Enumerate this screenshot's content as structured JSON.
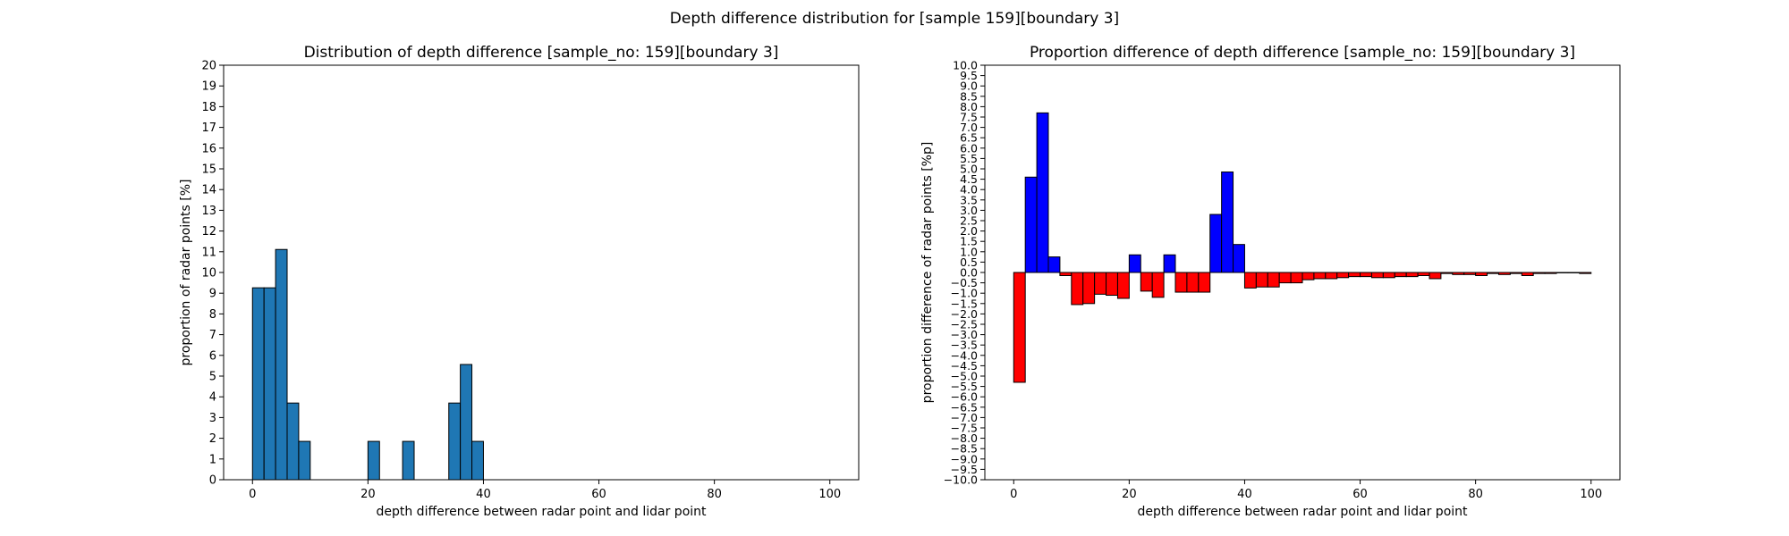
{
  "figure": {
    "suptitle": "Depth difference distribution for [sample 159][boundary 3]"
  },
  "chart_data": [
    {
      "type": "bar",
      "title": "Distribution of depth difference [sample_no: 159][boundary 3]",
      "xlabel": "depth difference between radar point and lidar point",
      "ylabel": "proportion of radar points [%]",
      "xlim": [
        -5,
        105
      ],
      "ylim": [
        0,
        20
      ],
      "xticks": [
        0,
        20,
        40,
        60,
        80,
        100
      ],
      "yticks": [
        0,
        1,
        2,
        3,
        4,
        5,
        6,
        7,
        8,
        9,
        10,
        11,
        12,
        13,
        14,
        15,
        16,
        17,
        18,
        19,
        20
      ],
      "bin_width": 2,
      "bin_starts": [
        0,
        2,
        4,
        6,
        8,
        20,
        26,
        34,
        36,
        38
      ],
      "values": [
        9.26,
        9.26,
        11.11,
        3.7,
        1.85,
        1.85,
        1.85,
        3.7,
        5.56,
        1.85
      ],
      "colors": {
        "bar": "#1f77b4",
        "edge": "#000000"
      },
      "grid": false
    },
    {
      "type": "bar",
      "title": "Proportion difference of depth difference [sample_no: 159][boundary 3]",
      "xlabel": "depth difference between radar point and lidar point",
      "ylabel": "proportion difference of radar points [%p]",
      "xlim": [
        -5,
        105
      ],
      "ylim": [
        -10,
        10
      ],
      "xticks": [
        0,
        20,
        40,
        60,
        80,
        100
      ],
      "ytick_labels": [
        "10.0",
        "9.5",
        "9.0",
        "8.5",
        "8.0",
        "7.5",
        "7.0",
        "6.5",
        "6.0",
        "5.5",
        "5.0",
        "4.5",
        "4.0",
        "3.5",
        "3.0",
        "2.5",
        "2.0",
        "1.5",
        "1.0",
        "0.5",
        "0.0",
        "−0.5",
        "−1.0",
        "−1.5",
        "−2.0",
        "−2.5",
        "−3.0",
        "−3.5",
        "−4.0",
        "−4.5",
        "−5.0",
        "−5.5",
        "−6.0",
        "−6.5",
        "−7.0",
        "−7.5",
        "−8.0",
        "−8.5",
        "−9.0",
        "−9.5",
        "−10.0"
      ],
      "ytick_values": [
        10,
        9.5,
        9,
        8.5,
        8,
        7.5,
        7,
        6.5,
        6,
        5.5,
        5,
        4.5,
        4,
        3.5,
        3,
        2.5,
        2,
        1.5,
        1,
        0.5,
        0,
        -0.5,
        -1,
        -1.5,
        -2,
        -2.5,
        -3,
        -3.5,
        -4,
        -4.5,
        -5,
        -5.5,
        -6,
        -6.5,
        -7,
        -7.5,
        -8,
        -8.5,
        -9,
        -9.5,
        -10
      ],
      "bin_width": 2,
      "bin_starts": [
        0,
        2,
        4,
        6,
        8,
        10,
        12,
        14,
        16,
        18,
        20,
        22,
        24,
        26,
        28,
        30,
        32,
        34,
        36,
        38,
        40,
        42,
        44,
        46,
        48,
        50,
        52,
        54,
        56,
        58,
        60,
        62,
        64,
        66,
        68,
        70,
        72,
        74,
        76,
        78,
        80,
        82,
        84,
        86,
        88,
        90,
        92,
        94,
        96,
        98
      ],
      "values": [
        -5.3,
        4.6,
        7.7,
        0.75,
        -0.15,
        -1.55,
        -1.5,
        -1.05,
        -1.1,
        -1.25,
        0.85,
        -0.9,
        -1.2,
        0.85,
        -0.95,
        -0.95,
        -0.95,
        2.8,
        4.85,
        1.35,
        -0.75,
        -0.7,
        -0.7,
        -0.5,
        -0.5,
        -0.35,
        -0.3,
        -0.3,
        -0.25,
        -0.2,
        -0.2,
        -0.25,
        -0.25,
        -0.2,
        -0.2,
        -0.15,
        -0.3,
        -0.05,
        -0.1,
        -0.1,
        -0.15,
        -0.05,
        -0.1,
        -0.05,
        -0.15,
        -0.05,
        -0.05,
        -0.02,
        -0.02,
        -0.05
      ],
      "colors": {
        "positive": "#0000ff",
        "negative": "#ff0000",
        "edge": "#000000"
      },
      "grid": false
    }
  ]
}
